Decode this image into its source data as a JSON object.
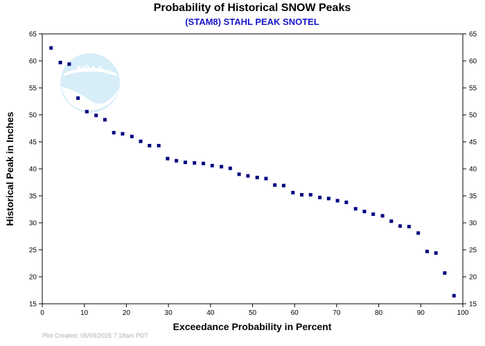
{
  "chart_data": {
    "type": "scatter",
    "title": "Probability of Historical SNOW Peaks",
    "subtitle": "(STAM8) STAHL PEAK SNOTEL",
    "xlabel": "Exceedance Probability in Percent",
    "ylabel": "Historical Peak in Inches",
    "xlim": [
      0,
      100
    ],
    "ylim": [
      15,
      65
    ],
    "xticks": [
      0,
      10,
      20,
      30,
      40,
      50,
      60,
      70,
      80,
      90,
      100
    ],
    "yticks": [
      15,
      20,
      25,
      30,
      35,
      40,
      45,
      50,
      55,
      60,
      65
    ],
    "grid": false,
    "marker_color": "#000080",
    "series": [
      {
        "x": [
          2.1,
          4.3,
          6.4,
          8.5,
          10.6,
          12.8,
          14.9,
          17.0,
          19.1,
          21.3,
          23.4,
          25.5,
          27.7,
          29.8,
          31.9,
          34.0,
          36.2,
          38.3,
          40.4,
          42.6,
          44.7,
          46.8,
          48.9,
          51.1,
          53.2,
          55.3,
          57.4,
          59.6,
          61.7,
          63.8,
          66.0,
          68.1,
          70.2,
          72.3,
          74.5,
          76.6,
          78.7,
          80.9,
          83.0,
          85.1,
          87.2,
          89.4,
          91.5,
          93.6,
          95.7,
          97.9
        ],
        "y": [
          62.4,
          59.7,
          59.4,
          53.1,
          50.6,
          49.9,
          49.1,
          46.7,
          46.5,
          46.0,
          45.1,
          44.3,
          44.3,
          41.9,
          41.5,
          41.2,
          41.1,
          41.0,
          40.6,
          40.4,
          40.1,
          39.0,
          38.7,
          38.4,
          38.2,
          37.0,
          36.9,
          35.6,
          35.2,
          35.2,
          34.7,
          34.5,
          34.1,
          33.8,
          32.6,
          32.1,
          31.6,
          31.3,
          30.3,
          29.4,
          29.3,
          28.1,
          24.7,
          24.4,
          20.7,
          16.5
        ]
      }
    ]
  },
  "logo": {
    "text": "NOAA",
    "color": "#c8e6f5"
  },
  "footer": {
    "text": "Plot Created: 05/09/2025 7:18am PDT"
  }
}
